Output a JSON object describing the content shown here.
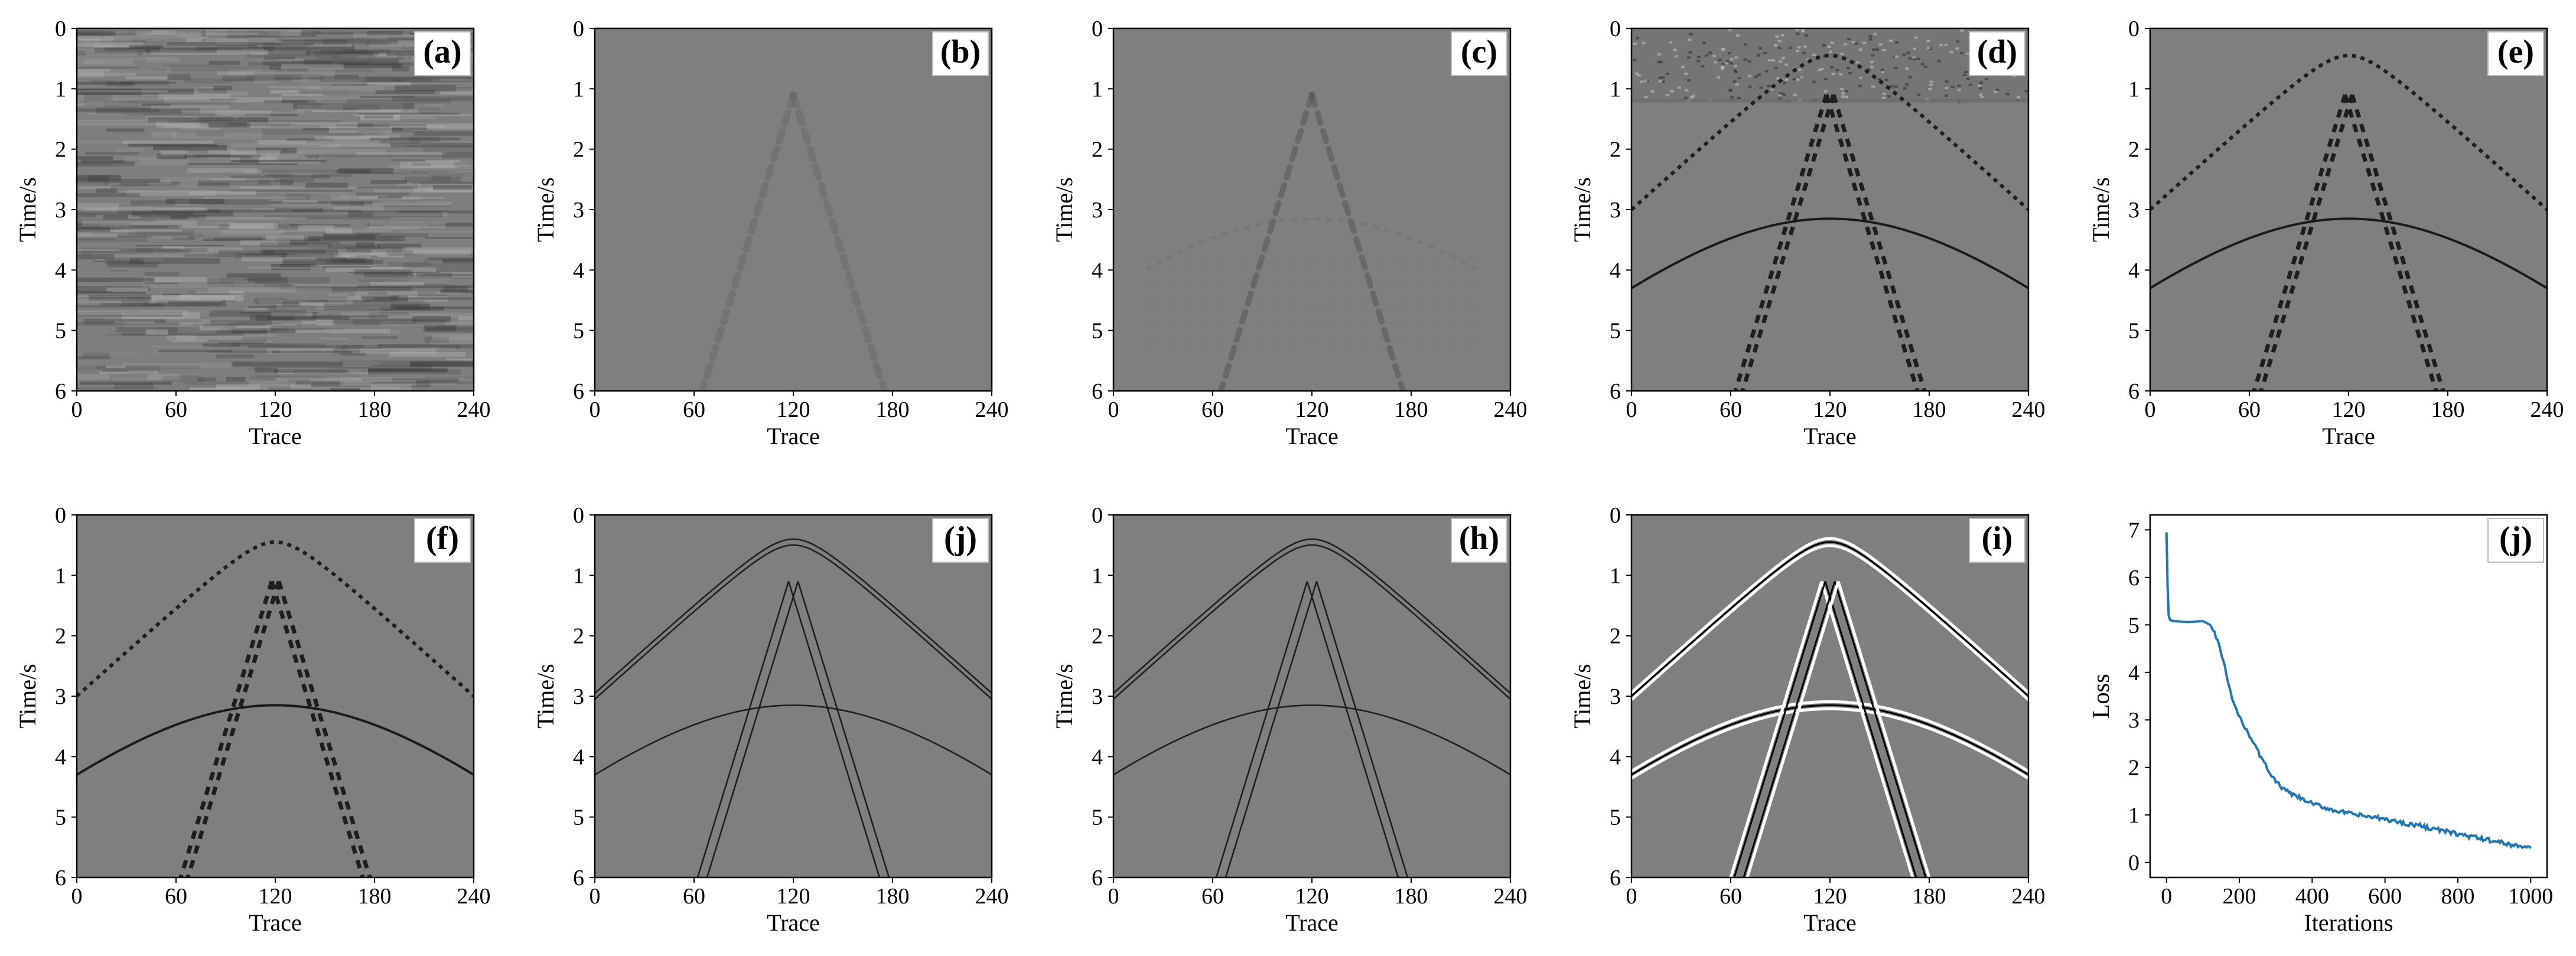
{
  "figure": {
    "panels": [
      {
        "id": "a",
        "label": "(a)",
        "kind": "seismic",
        "content": "random_noise",
        "xlabel": "Trace",
        "ylabel": "Time/s"
      },
      {
        "id": "b",
        "label": "(b)",
        "kind": "seismic",
        "content": "faint_inner_events",
        "xlabel": "Trace",
        "ylabel": "Time/s"
      },
      {
        "id": "c",
        "label": "(c)",
        "kind": "seismic",
        "content": "blurry_inner_events",
        "xlabel": "Trace",
        "ylabel": "Time/s"
      },
      {
        "id": "d",
        "label": "(d)",
        "kind": "seismic",
        "content": "dashed_events_with_noise_band",
        "xlabel": "Trace",
        "ylabel": "Time/s"
      },
      {
        "id": "e",
        "label": "(e)",
        "kind": "seismic",
        "content": "dashed_events",
        "xlabel": "Trace",
        "ylabel": "Time/s"
      },
      {
        "id": "f",
        "label": "(f)",
        "kind": "seismic",
        "content": "dashed_events",
        "xlabel": "Trace",
        "ylabel": "Time/s"
      },
      {
        "id": "j1",
        "label": "(j)",
        "kind": "seismic",
        "content": "double_line_events",
        "xlabel": "Trace",
        "ylabel": "Time/s"
      },
      {
        "id": "h",
        "label": "(h)",
        "kind": "seismic",
        "content": "double_line_events",
        "xlabel": "Trace",
        "ylabel": "Time/s"
      },
      {
        "id": "i",
        "label": "(i)",
        "kind": "seismic",
        "content": "black_white_events",
        "xlabel": "Trace",
        "ylabel": "Time/s"
      },
      {
        "id": "j2",
        "label": "(j)",
        "kind": "loss",
        "xlabel": "Iterations",
        "ylabel": "Loss"
      }
    ]
  },
  "chart_data": [
    {
      "type": "heatmap",
      "panel_labels": [
        "(a)",
        "(b)",
        "(c)",
        "(d)",
        "(e)",
        "(f)",
        "(j)",
        "(h)",
        "(i)"
      ],
      "xlabel": "Trace",
      "ylabel": "Time/s",
      "xlim": [
        0,
        240
      ],
      "ylim": [
        6,
        0
      ],
      "xticks": [
        "0",
        "60",
        "120",
        "180",
        "240"
      ],
      "yticks": [
        "0",
        "1",
        "2",
        "3",
        "4",
        "5",
        "6"
      ],
      "colormap": "gray",
      "events": {
        "outer_hyperbola": {
          "apex_trace": 120,
          "apex_time": 0.45,
          "edge_time": 3.0
        },
        "inner_hyperbola": {
          "apex_trace": 120,
          "apex_time": 3.15,
          "edge_time": 4.3
        },
        "inner_dipping_v": {
          "apex_trace": 120,
          "apex_time": 1.1,
          "bottom_traces": [
            65,
            175
          ],
          "bottom_time": 6.0
        }
      }
    },
    {
      "type": "line",
      "panel_label": "(j)",
      "xlabel": "Iterations",
      "ylabel": "Loss",
      "xlim": [
        0,
        1000
      ],
      "ylim": [
        0,
        7
      ],
      "xticks": [
        "0",
        "200",
        "400",
        "600",
        "800",
        "1000"
      ],
      "yticks": [
        "0",
        "1",
        "2",
        "3",
        "4",
        "5",
        "6",
        "7"
      ],
      "color": "#1f77b4",
      "x": [
        0,
        3,
        6,
        10,
        20,
        40,
        60,
        80,
        100,
        120,
        140,
        160,
        180,
        200,
        220,
        240,
        260,
        280,
        300,
        320,
        340,
        360,
        380,
        400,
        450,
        500,
        550,
        600,
        650,
        700,
        750,
        800,
        850,
        900,
        950,
        1000
      ],
      "y": [
        6.95,
        5.8,
        5.2,
        5.1,
        5.08,
        5.07,
        5.06,
        5.07,
        5.08,
        5.0,
        4.7,
        4.1,
        3.45,
        3.05,
        2.8,
        2.5,
        2.2,
        1.95,
        1.7,
        1.55,
        1.45,
        1.38,
        1.3,
        1.24,
        1.12,
        1.03,
        0.97,
        0.91,
        0.83,
        0.77,
        0.68,
        0.6,
        0.52,
        0.45,
        0.37,
        0.3
      ]
    }
  ]
}
